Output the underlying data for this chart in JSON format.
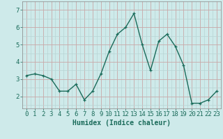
{
  "x": [
    0,
    1,
    2,
    3,
    4,
    5,
    6,
    7,
    8,
    9,
    10,
    11,
    12,
    13,
    14,
    15,
    16,
    17,
    18,
    19,
    20,
    21,
    22,
    23
  ],
  "y": [
    3.2,
    3.3,
    3.2,
    3.0,
    2.3,
    2.3,
    2.7,
    1.8,
    2.3,
    3.3,
    4.6,
    5.6,
    6.0,
    6.8,
    5.0,
    3.5,
    5.2,
    5.6,
    4.9,
    3.8,
    1.6,
    1.6,
    1.8,
    2.3
  ],
  "line_color": "#1a6b5a",
  "marker": "+",
  "marker_size": 3,
  "bg_color": "#ceeaea",
  "grid_color_major": "#c8a8a8",
  "grid_color_minor": "#b8d4d4",
  "xlabel": "Humidex (Indice chaleur)",
  "xlabel_fontsize": 7,
  "ylabel_ticks": [
    2,
    3,
    4,
    5,
    6,
    7
  ],
  "ylim": [
    1.3,
    7.5
  ],
  "xlim": [
    -0.5,
    23.5
  ],
  "tick_fontsize": 6.5,
  "linewidth": 1.0,
  "spine_color": "#888888"
}
